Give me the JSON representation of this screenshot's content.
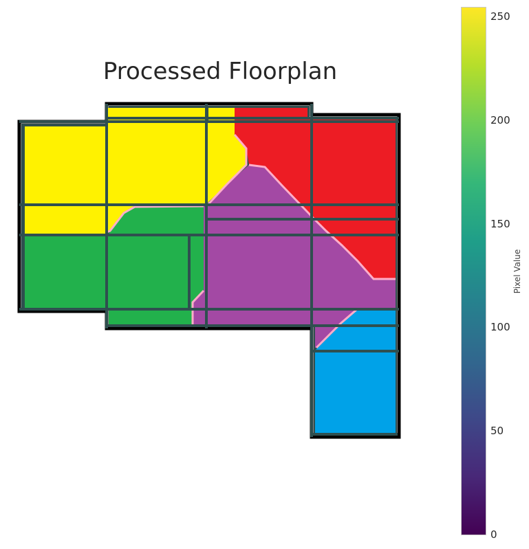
{
  "chart_data": {
    "type": "heatmap",
    "title": "Processed Floorplan",
    "colorbar": {
      "label": "Pixel Value",
      "ticks": [
        0,
        50,
        100,
        150,
        200,
        250
      ],
      "vmin": 0,
      "vmax": 255,
      "colormap": "viridis"
    },
    "region_colors": {
      "yellow_room": "#fff200",
      "red_room": "#ed1c24",
      "purple_room": "#a349a4",
      "green_room": "#22b14c",
      "blue_room": "#00a2e8",
      "boundary_line": "#ffaec9",
      "wall": "#2f4f4f",
      "outline": "#000000"
    },
    "grid": "off"
  }
}
